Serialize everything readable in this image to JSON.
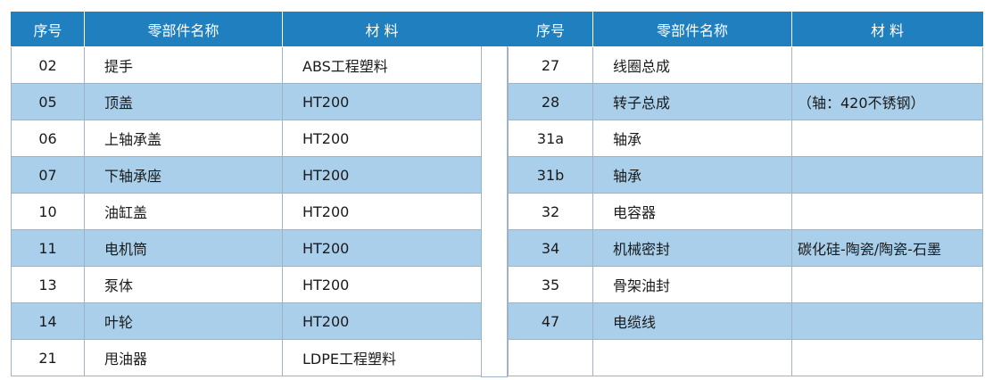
{
  "headers": {
    "no": "序号",
    "name": "零部件名称",
    "material": "材 料"
  },
  "left_rows": [
    {
      "no": "02",
      "name": "提手",
      "material": "ABS工程塑料"
    },
    {
      "no": "05",
      "name": "顶盖",
      "material": "HT200"
    },
    {
      "no": "06",
      "name": "上轴承盖",
      "material": "HT200"
    },
    {
      "no": "07",
      "name": "下轴承座",
      "material": "HT200"
    },
    {
      "no": "10",
      "name": "油缸盖",
      "material": "HT200"
    },
    {
      "no": "11",
      "name": "电机筒",
      "material": "HT200"
    },
    {
      "no": "13",
      "name": "泵体",
      "material": "HT200"
    },
    {
      "no": "14",
      "name": "叶轮",
      "material": "HT200"
    },
    {
      "no": "21",
      "name": "甩油器",
      "material": "LDPE工程塑料"
    }
  ],
  "right_rows": [
    {
      "no": "27",
      "name": "线圈总成",
      "material": ""
    },
    {
      "no": "28",
      "name": "转子总成",
      "material": "（轴：420不锈钢）"
    },
    {
      "no": "31a",
      "name": "轴承",
      "material": ""
    },
    {
      "no": "31b",
      "name": "轴承",
      "material": ""
    },
    {
      "no": "32",
      "name": "电容器",
      "material": ""
    },
    {
      "no": "34",
      "name": "机械密封",
      "material": "碳化硅-陶瓷/陶瓷-石墨"
    },
    {
      "no": "35",
      "name": "骨架油封",
      "material": ""
    },
    {
      "no": "47",
      "name": "电缆线",
      "material": ""
    },
    {
      "no": "",
      "name": "",
      "material": ""
    }
  ],
  "colors": {
    "header": "#1f7fbf",
    "alt_row": "#a9cfea",
    "border": "#9fb3c4"
  }
}
